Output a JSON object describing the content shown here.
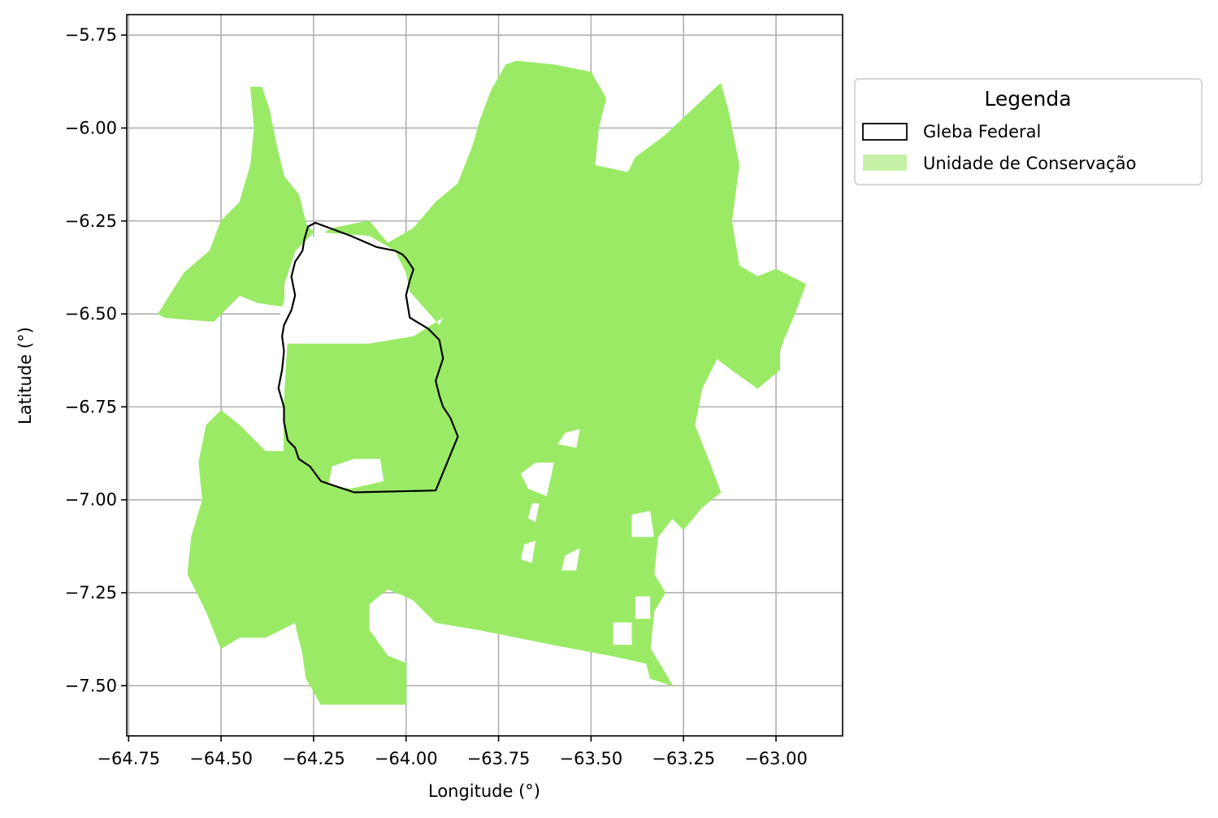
{
  "colors": {
    "conservation_fill": "#9AEA66",
    "conservation_legend": "#C5F2A6",
    "gleba_edge": "#000000",
    "grid": "#B0B0B0"
  },
  "axes": {
    "xlabel": "Longitude (°)",
    "ylabel": "Latitude (°)",
    "xlim": [
      -64.755,
      -62.82
    ],
    "ylim": [
      -7.635,
      -5.695
    ],
    "xticks": [
      "−64.75",
      "−64.50",
      "−64.25",
      "−64.00",
      "−63.75",
      "−63.50",
      "−63.25",
      "−63.00"
    ],
    "yticks": [
      "−5.75",
      "−6.00",
      "−6.25",
      "−6.50",
      "−6.75",
      "−7.00",
      "−7.25",
      "−7.50"
    ]
  },
  "legend": {
    "title": "Legenda",
    "items": [
      {
        "label": "Gleba Federal"
      },
      {
        "label": "Unidade de Conservação"
      }
    ]
  },
  "chart_data": {
    "type": "map",
    "title": "",
    "xlabel": "Longitude (°)",
    "ylabel": "Latitude (°)",
    "grid": true,
    "legend_position": "right",
    "layers": [
      {
        "name": "Unidade de Conservação",
        "shapes": [
          [
            [
              -63.73,
              -5.83
            ],
            [
              -63.7,
              -5.82
            ],
            [
              -63.6,
              -5.83
            ],
            [
              -63.5,
              -5.85
            ],
            [
              -63.46,
              -5.92
            ],
            [
              -63.48,
              -6.0
            ],
            [
              -63.49,
              -6.1
            ],
            [
              -63.4,
              -6.12
            ],
            [
              -63.38,
              -6.08
            ],
            [
              -63.3,
              -6.02
            ],
            [
              -63.15,
              -5.88
            ],
            [
              -63.13,
              -5.95
            ],
            [
              -63.1,
              -6.1
            ],
            [
              -63.12,
              -6.25
            ],
            [
              -63.1,
              -6.37
            ],
            [
              -63.05,
              -6.4
            ],
            [
              -63.0,
              -6.38
            ],
            [
              -62.92,
              -6.42
            ],
            [
              -62.95,
              -6.5
            ],
            [
              -62.98,
              -6.57
            ],
            [
              -62.99,
              -6.6
            ],
            [
              -62.99,
              -6.65
            ],
            [
              -63.05,
              -6.7
            ],
            [
              -63.12,
              -6.65
            ],
            [
              -63.16,
              -6.62
            ],
            [
              -63.2,
              -6.7
            ],
            [
              -63.22,
              -6.8
            ],
            [
              -63.18,
              -6.9
            ],
            [
              -63.15,
              -6.98
            ],
            [
              -63.2,
              -7.02
            ],
            [
              -63.25,
              -7.08
            ],
            [
              -63.28,
              -7.05
            ],
            [
              -63.32,
              -7.1
            ],
            [
              -63.33,
              -7.2
            ],
            [
              -63.3,
              -7.25
            ],
            [
              -63.33,
              -7.3
            ],
            [
              -63.34,
              -7.4
            ],
            [
              -63.31,
              -7.45
            ],
            [
              -63.28,
              -7.5
            ],
            [
              -63.34,
              -7.48
            ],
            [
              -63.35,
              -7.44
            ],
            [
              -63.44,
              -7.42
            ],
            [
              -63.6,
              -7.39
            ],
            [
              -63.8,
              -7.35
            ],
            [
              -63.92,
              -7.33
            ],
            [
              -63.98,
              -7.27
            ],
            [
              -64.0,
              -7.26
            ],
            [
              -64.05,
              -7.24
            ],
            [
              -64.1,
              -7.28
            ],
            [
              -64.1,
              -7.35
            ],
            [
              -64.05,
              -7.42
            ],
            [
              -64.0,
              -7.44
            ],
            [
              -64.0,
              -7.55
            ],
            [
              -64.23,
              -7.55
            ],
            [
              -64.27,
              -7.48
            ],
            [
              -64.28,
              -7.41
            ],
            [
              -64.3,
              -7.33
            ],
            [
              -64.38,
              -7.37
            ],
            [
              -64.45,
              -7.37
            ],
            [
              -64.5,
              -7.4
            ],
            [
              -64.54,
              -7.3
            ],
            [
              -64.59,
              -7.2
            ],
            [
              -64.58,
              -7.1
            ],
            [
              -64.55,
              -7.0
            ],
            [
              -64.56,
              -6.9
            ],
            [
              -64.54,
              -6.8
            ],
            [
              -64.5,
              -6.76
            ],
            [
              -64.45,
              -6.8
            ],
            [
              -64.38,
              -6.87
            ],
            [
              -64.33,
              -6.87
            ],
            [
              -64.33,
              -6.75
            ],
            [
              -64.32,
              -6.58
            ],
            [
              -64.28,
              -6.45
            ],
            [
              -64.25,
              -6.3
            ],
            [
              -64.2,
              -6.27
            ],
            [
              -64.1,
              -6.25
            ],
            [
              -64.05,
              -6.31
            ],
            [
              -63.98,
              -6.27
            ],
            [
              -63.92,
              -6.2
            ],
            [
              -63.86,
              -6.15
            ],
            [
              -63.82,
              -6.05
            ],
            [
              -63.8,
              -5.98
            ],
            [
              -63.77,
              -5.9
            ]
          ],
          [
            [
              -64.42,
              -5.89
            ],
            [
              -64.39,
              -5.89
            ],
            [
              -64.37,
              -5.95
            ],
            [
              -64.35,
              -6.05
            ],
            [
              -64.33,
              -6.13
            ],
            [
              -64.29,
              -6.18
            ],
            [
              -64.27,
              -6.26
            ],
            [
              -64.25,
              -6.28
            ],
            [
              -64.3,
              -6.33
            ],
            [
              -64.33,
              -6.42
            ],
            [
              -64.33,
              -6.48
            ],
            [
              -64.4,
              -6.47
            ],
            [
              -64.45,
              -6.45
            ],
            [
              -64.52,
              -6.52
            ],
            [
              -64.65,
              -6.51
            ],
            [
              -64.67,
              -6.5
            ],
            [
              -64.6,
              -6.39
            ],
            [
              -64.53,
              -6.33
            ],
            [
              -64.5,
              -6.25
            ],
            [
              -64.45,
              -6.2
            ],
            [
              -64.42,
              -6.1
            ],
            [
              -64.41,
              -6.0
            ]
          ]
        ],
        "holes": [
          [
            [
              -64.0,
              -6.39
            ],
            [
              -63.99,
              -6.44
            ],
            [
              -63.91,
              -6.53
            ],
            [
              -63.9,
              -6.51
            ],
            [
              -63.98,
              -6.56
            ],
            [
              -64.1,
              -6.58
            ],
            [
              -64.33,
              -6.58
            ],
            [
              -64.34,
              -6.5
            ],
            [
              -64.32,
              -6.43
            ],
            [
              -64.3,
              -6.38
            ],
            [
              -64.27,
              -6.32
            ],
            [
              -64.24,
              -6.28
            ],
            [
              -64.1,
              -6.29
            ],
            [
              -64.03,
              -6.33
            ]
          ],
          [
            [
              -64.2,
              -6.91
            ],
            [
              -64.14,
              -6.89
            ],
            [
              -64.07,
              -6.89
            ],
            [
              -64.06,
              -6.95
            ],
            [
              -64.15,
              -6.97
            ],
            [
              -64.21,
              -6.96
            ]
          ],
          [
            [
              -63.57,
              -6.82
            ],
            [
              -63.53,
              -6.81
            ],
            [
              -63.54,
              -6.86
            ],
            [
              -63.59,
              -6.85
            ]
          ],
          [
            [
              -63.69,
              -6.93
            ],
            [
              -63.65,
              -6.9
            ],
            [
              -63.6,
              -6.9
            ],
            [
              -63.62,
              -6.99
            ],
            [
              -63.67,
              -6.97
            ]
          ],
          [
            [
              -63.66,
              -7.01
            ],
            [
              -63.64,
              -7.01
            ],
            [
              -63.65,
              -7.06
            ],
            [
              -63.67,
              -7.05
            ]
          ],
          [
            [
              -63.68,
              -7.12
            ],
            [
              -63.65,
              -7.11
            ],
            [
              -63.66,
              -7.17
            ],
            [
              -63.69,
              -7.16
            ]
          ],
          [
            [
              -63.57,
              -7.15
            ],
            [
              -63.53,
              -7.13
            ],
            [
              -63.54,
              -7.19
            ],
            [
              -63.58,
              -7.19
            ]
          ],
          [
            [
              -63.39,
              -7.04
            ],
            [
              -63.34,
              -7.03
            ],
            [
              -63.33,
              -7.1
            ],
            [
              -63.39,
              -7.1
            ]
          ],
          [
            [
              -63.38,
              -7.26
            ],
            [
              -63.34,
              -7.26
            ],
            [
              -63.34,
              -7.32
            ],
            [
              -63.38,
              -7.32
            ]
          ],
          [
            [
              -63.44,
              -7.33
            ],
            [
              -63.39,
              -7.33
            ],
            [
              -63.39,
              -7.39
            ],
            [
              -63.44,
              -7.39
            ]
          ]
        ]
      },
      {
        "name": "Gleba Federal",
        "shapes": [
          [
            [
              -64.245,
              -6.255
            ],
            [
              -64.265,
              -6.265
            ],
            [
              -64.275,
              -6.3
            ],
            [
              -64.28,
              -6.33
            ],
            [
              -64.3,
              -6.36
            ],
            [
              -64.31,
              -6.4
            ],
            [
              -64.3,
              -6.45
            ],
            [
              -64.31,
              -6.49
            ],
            [
              -64.33,
              -6.53
            ],
            [
              -64.335,
              -6.56
            ],
            [
              -64.33,
              -6.6
            ],
            [
              -64.335,
              -6.65
            ],
            [
              -64.345,
              -6.7
            ],
            [
              -64.33,
              -6.75
            ],
            [
              -64.33,
              -6.79
            ],
            [
              -64.32,
              -6.84
            ],
            [
              -64.3,
              -6.86
            ],
            [
              -64.29,
              -6.89
            ],
            [
              -64.26,
              -6.91
            ],
            [
              -64.23,
              -6.95
            ],
            [
              -64.2,
              -6.96
            ],
            [
              -64.17,
              -6.97
            ],
            [
              -64.14,
              -6.98
            ],
            [
              -63.92,
              -6.975
            ],
            [
              -63.86,
              -6.83
            ],
            [
              -63.88,
              -6.78
            ],
            [
              -63.9,
              -6.75
            ],
            [
              -63.91,
              -6.72
            ],
            [
              -63.92,
              -6.68
            ],
            [
              -63.91,
              -6.65
            ],
            [
              -63.9,
              -6.62
            ],
            [
              -63.91,
              -6.57
            ],
            [
              -63.94,
              -6.54
            ],
            [
              -63.99,
              -6.51
            ],
            [
              -64.0,
              -6.45
            ],
            [
              -63.99,
              -6.41
            ],
            [
              -63.98,
              -6.38
            ],
            [
              -64.0,
              -6.35
            ],
            [
              -64.01,
              -6.34
            ],
            [
              -64.03,
              -6.33
            ],
            [
              -64.08,
              -6.32
            ],
            [
              -64.15,
              -6.29
            ]
          ]
        ]
      }
    ]
  }
}
